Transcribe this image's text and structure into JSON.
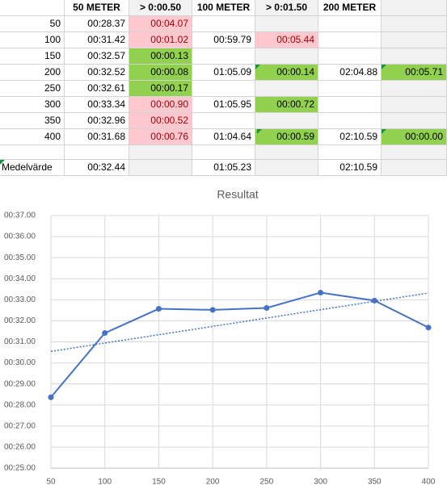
{
  "table": {
    "header": [
      null,
      "50 METER",
      "> 0:00.50",
      "100 METER",
      "> 0:01.50",
      "200 METER",
      null
    ],
    "rows": [
      {
        "label": "50",
        "cells": [
          {
            "text": "00:28.37"
          },
          {
            "text": "00:04.07",
            "status": "bad"
          },
          null,
          null,
          null,
          null
        ]
      },
      {
        "label": "100",
        "cells": [
          {
            "text": "00:31.42"
          },
          {
            "text": "00:01.02",
            "status": "bad"
          },
          {
            "text": "00:59.79"
          },
          {
            "text": "00:05.44",
            "status": "bad"
          },
          null,
          null
        ]
      },
      {
        "label": "150",
        "cells": [
          {
            "text": "00:32.57"
          },
          {
            "text": "00:00.13",
            "status": "good"
          },
          null,
          null,
          null,
          null
        ]
      },
      {
        "label": "200",
        "cells": [
          {
            "text": "00:32.52"
          },
          {
            "text": "00:00.08",
            "status": "good"
          },
          {
            "text": "01:05.09"
          },
          {
            "text": "00:00.14",
            "status": "good"
          },
          {
            "text": "02:04.88"
          },
          {
            "text": "00:05.71",
            "status": "good"
          }
        ]
      },
      {
        "label": "250",
        "cells": [
          {
            "text": "00:32.61"
          },
          {
            "text": "00:00.17",
            "status": "good"
          },
          null,
          null,
          null,
          null
        ]
      },
      {
        "label": "300",
        "cells": [
          {
            "text": "00:33.34"
          },
          {
            "text": "00:00.90",
            "status": "bad"
          },
          {
            "text": "01:05.95"
          },
          {
            "text": "00:00.72",
            "status": "good"
          },
          null,
          null
        ]
      },
      {
        "label": "350",
        "cells": [
          {
            "text": "00:32.96"
          },
          {
            "text": "00:00.52",
            "status": "bad"
          },
          null,
          null,
          null,
          null
        ]
      },
      {
        "label": "400",
        "cells": [
          {
            "text": "00:31.68"
          },
          {
            "text": "00:00.76",
            "status": "bad"
          },
          {
            "text": "01:04.64"
          },
          {
            "text": "00:00.59",
            "status": "good"
          },
          {
            "text": "02:10.59"
          },
          {
            "text": "00:00.00",
            "status": "good"
          }
        ]
      },
      {
        "label": null,
        "cells": [
          null,
          null,
          null,
          null,
          null,
          null
        ]
      },
      {
        "label": "Medelvärde",
        "cells": [
          {
            "text": "00:32.44"
          },
          null,
          {
            "text": "01:05.23"
          },
          null,
          {
            "text": "02:10.59"
          },
          null
        ]
      }
    ]
  },
  "chart_data": {
    "type": "line",
    "title": "Resultat",
    "x": [
      50,
      100,
      150,
      200,
      250,
      300,
      350,
      400
    ],
    "series": [
      {
        "name": "50 METER",
        "color": "#4472c4",
        "values": [
          28.37,
          31.42,
          32.57,
          32.52,
          32.61,
          33.34,
          32.96,
          31.68
        ]
      }
    ],
    "xlim": [
      50,
      400
    ],
    "xticks": [
      50,
      100,
      150,
      200,
      250,
      300,
      350,
      400
    ],
    "ylim": [
      25,
      37
    ],
    "yticks": [
      {
        "value": 25,
        "label": "00:25.00"
      },
      {
        "value": 26,
        "label": "00:26.00"
      },
      {
        "value": 27,
        "label": "00:27.00"
      },
      {
        "value": 28,
        "label": "00:28.00"
      },
      {
        "value": 29,
        "label": "00:29.00"
      },
      {
        "value": 30,
        "label": "00:30.00"
      },
      {
        "value": 31,
        "label": "00:31.00"
      },
      {
        "value": 32,
        "label": "00:32.00"
      },
      {
        "value": 33,
        "label": "00:33.00"
      },
      {
        "value": 34,
        "label": "00:34.00"
      },
      {
        "value": 35,
        "label": "00:35.00"
      },
      {
        "value": 36,
        "label": "00:36.00"
      },
      {
        "value": 37,
        "label": "00:37.00"
      }
    ],
    "grid": true,
    "trendline": true
  }
}
